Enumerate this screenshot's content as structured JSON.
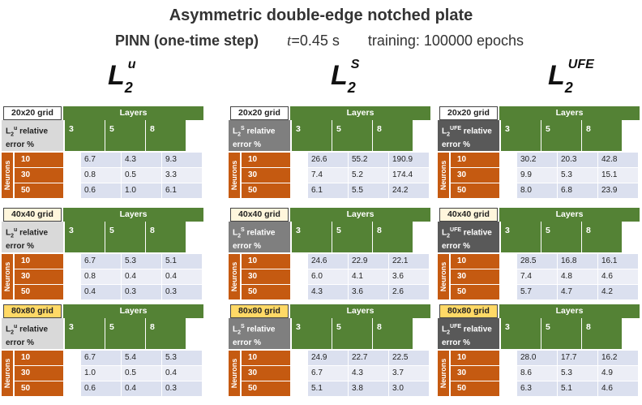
{
  "header": {
    "title": "Asymmetric double-edge notched plate",
    "method": "PINN (one-time step)",
    "time_var": "t",
    "time_value": "=0.45 s",
    "training": "training: 100000 epochs"
  },
  "columns": [
    {
      "metric_main": "L",
      "metric_sub": "2",
      "metric_sup": "u",
      "err_prefix": "L",
      "err_sub": "2",
      "err_sup": "u",
      "err_line1_suffix": " relative",
      "err_line2": "error %",
      "label_bg": "#d9d9d9",
      "label_color": "#222222",
      "tables": [
        {
          "grid": "20x20 grid",
          "values": [
            [
              "6.7",
              "4.3",
              "9.3"
            ],
            [
              "0.8",
              "0.5",
              "3.3"
            ],
            [
              "0.6",
              "1.0",
              "6.1"
            ]
          ]
        },
        {
          "grid": "40x40 grid",
          "values": [
            [
              "6.7",
              "5.3",
              "5.1"
            ],
            [
              "0.8",
              "0.4",
              "0.4"
            ],
            [
              "0.4",
              "0.3",
              "0.3"
            ]
          ]
        },
        {
          "grid": "80x80 grid",
          "values": [
            [
              "6.7",
              "5.4",
              "5.3"
            ],
            [
              "1.0",
              "0.5",
              "0.4"
            ],
            [
              "0.6",
              "0.4",
              "0.3"
            ]
          ]
        }
      ]
    },
    {
      "metric_main": "L",
      "metric_sub": "2",
      "metric_sup": "S",
      "err_prefix": "L",
      "err_sub": "2",
      "err_sup": "S",
      "err_line1_suffix": " relative",
      "err_line2": "error %",
      "label_bg": "#7f7f7f",
      "label_color": "#ffffff",
      "tables": [
        {
          "grid": "20x20 grid",
          "values": [
            [
              "26.6",
              "55.2",
              "190.9"
            ],
            [
              "7.4",
              "5.2",
              "174.4"
            ],
            [
              "6.1",
              "5.5",
              "24.2"
            ]
          ]
        },
        {
          "grid": "40x40 grid",
          "values": [
            [
              "24.6",
              "22.9",
              "22.1"
            ],
            [
              "6.0",
              "4.1",
              "3.6"
            ],
            [
              "4.3",
              "3.6",
              "2.6"
            ]
          ]
        },
        {
          "grid": "80x80 grid",
          "values": [
            [
              "24.9",
              "22.7",
              "22.5"
            ],
            [
              "6.7",
              "4.3",
              "3.7"
            ],
            [
              "5.1",
              "3.8",
              "3.0"
            ]
          ]
        }
      ]
    },
    {
      "metric_main": "L",
      "metric_sub": "2",
      "metric_sup": "UFE",
      "err_prefix": "L",
      "err_sub": "2",
      "err_sup": "UFE",
      "err_line1_suffix": " relative",
      "err_line2": "error %",
      "label_bg": "#595959",
      "label_color": "#ffffff",
      "tables": [
        {
          "grid": "20x20 grid",
          "values": [
            [
              "30.2",
              "20.3",
              "42.8"
            ],
            [
              "9.9",
              "5.3",
              "15.1"
            ],
            [
              "8.0",
              "6.8",
              "23.9"
            ]
          ]
        },
        {
          "grid": "40x40 grid",
          "values": [
            [
              "28.5",
              "16.8",
              "16.1"
            ],
            [
              "7.4",
              "4.8",
              "4.6"
            ],
            [
              "5.7",
              "4.7",
              "4.2"
            ]
          ]
        },
        {
          "grid": "80x80 grid",
          "values": [
            [
              "28.0",
              "17.7",
              "16.2"
            ],
            [
              "8.6",
              "5.3",
              "4.9"
            ],
            [
              "6.3",
              "5.1",
              "4.6"
            ]
          ]
        }
      ]
    }
  ],
  "table_common": {
    "layers_label": "Layers",
    "layers": [
      "3",
      "5",
      "8"
    ],
    "neurons_label": "Neurons",
    "neurons": [
      "10",
      "30",
      "50"
    ]
  },
  "colors": {
    "green": "#548235",
    "orange": "#c55a11",
    "row_odd": "#dbe0ef",
    "row_even": "#eceef6"
  }
}
